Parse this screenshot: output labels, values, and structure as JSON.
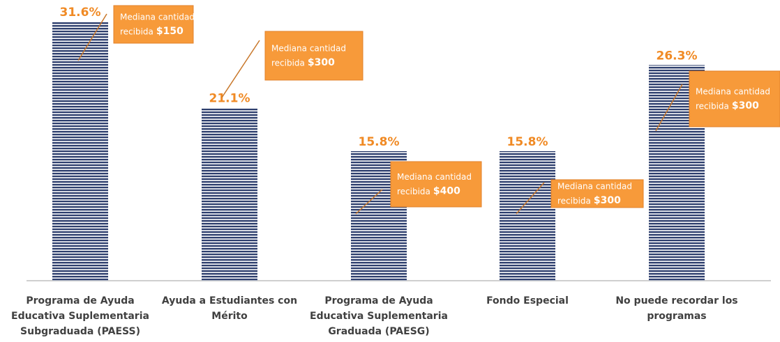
{
  "chart_data": {
    "type": "bar",
    "categories": [
      "Programa de Ayuda Educativa Suplementaria Subgraduada (PAESS)",
      "Ayuda a Estudiantes con Mérito",
      "Programa de Ayuda Educativa Suplementaria Graduada (PAESG)",
      "Fondo Especial",
      "No puede recordar los programas"
    ],
    "values": [
      31.6,
      21.1,
      15.8,
      15.8,
      26.3
    ],
    "value_labels": [
      "31.6%",
      "21.1%",
      "15.8%",
      "15.8%",
      "26.3%"
    ],
    "color": "#2e3f6e",
    "annotations": [
      {
        "line1": "Mediana cantidad",
        "line2": "recibida",
        "amount": "$150"
      },
      {
        "line1": "Mediana cantidad",
        "line2": "recibida",
        "amount": "$300"
      },
      {
        "line1": "Mediana cantidad",
        "line2": "recibida",
        "amount": "$400"
      },
      {
        "line1": "Mediana cantidad",
        "line2": "recibida",
        "amount": "$300"
      },
      {
        "line1": "Mediana cantidad",
        "line2": "recibida",
        "amount": "$300"
      }
    ]
  }
}
